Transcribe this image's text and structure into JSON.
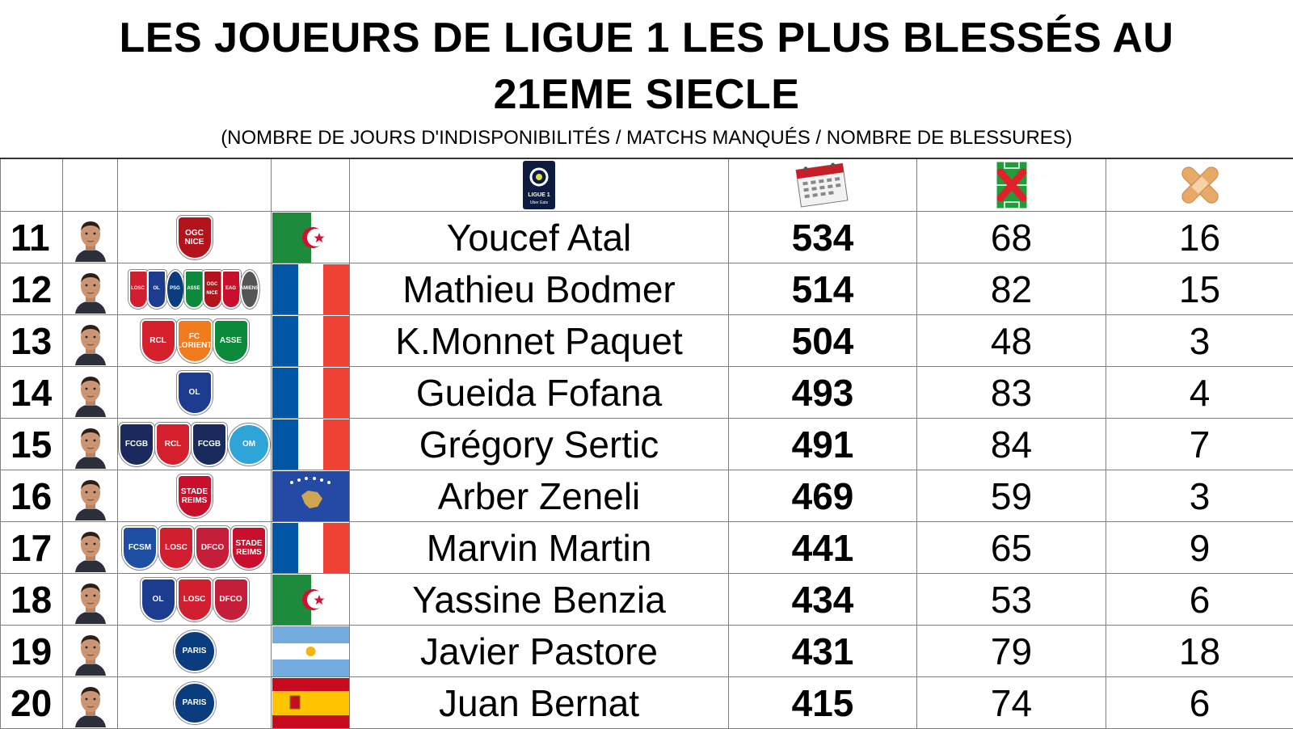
{
  "title": {
    "line1": "LES JOUEURS DE LIGUE 1 LES PLUS BLESSÉS AU",
    "line2": "21EME SIECLE"
  },
  "subtitle": "(NOMBRE DE JOURS D'INDISPONIBILITÉS / MATCHS MANQUÉS / NOMBRE DE BLESSURES)",
  "header_icons": {
    "league": "ligue1-logo-icon",
    "league_text": "LIGUE 1",
    "league_sub": "Uber Eats",
    "days": "calendar-icon",
    "matches": "pitch-cross-icon",
    "injuries": "bandage-icon"
  },
  "colors": {
    "pitch_green": "#1e9e3a",
    "cross_red": "#e0202a",
    "bandage": "#e8a868",
    "ligue1_navy": "#0d1b3e"
  },
  "rows": [
    {
      "rank": "11",
      "name": "Youcef Atal",
      "days": "534",
      "matches": "68",
      "injuries": "16",
      "flag": "algeria",
      "clubs": [
        {
          "label": "OGC NICE",
          "color": "#b3141b"
        }
      ]
    },
    {
      "rank": "12",
      "name": "Mathieu Bodmer",
      "days": "514",
      "matches": "82",
      "injuries": "15",
      "flag": "france",
      "clubs": [
        {
          "label": "LOSC",
          "color": "#d21f2f"
        },
        {
          "label": "OL",
          "color": "#1d3c8f"
        },
        {
          "label": "PSG",
          "color": "#0b3c7d"
        },
        {
          "label": "ASSE",
          "color": "#0a8a3a"
        },
        {
          "label": "OGC NICE",
          "color": "#b3141b"
        },
        {
          "label": "EAG",
          "color": "#c8102e"
        },
        {
          "label": "AMIENS",
          "color": "#555555"
        }
      ]
    },
    {
      "rank": "13",
      "name": "K.Monnet Paquet",
      "days": "504",
      "matches": "48",
      "injuries": "3",
      "flag": "france",
      "clubs": [
        {
          "label": "RCL",
          "color": "#d4202c"
        },
        {
          "label": "FC LORIENT",
          "color": "#f07c1e"
        },
        {
          "label": "ASSE",
          "color": "#0a8a3a"
        }
      ]
    },
    {
      "rank": "14",
      "name": "Gueida Fofana",
      "days": "493",
      "matches": "83",
      "injuries": "4",
      "flag": "france",
      "clubs": [
        {
          "label": "OL",
          "color": "#1d3c8f"
        }
      ]
    },
    {
      "rank": "15",
      "name": "Grégory Sertic",
      "days": "491",
      "matches": "84",
      "injuries": "7",
      "flag": "france",
      "clubs": [
        {
          "label": "FCGB",
          "color": "#1b2a5c"
        },
        {
          "label": "RCL",
          "color": "#d4202c"
        },
        {
          "label": "FCGB",
          "color": "#1b2a5c"
        },
        {
          "label": "OM",
          "color": "#2fa4d9"
        }
      ]
    },
    {
      "rank": "16",
      "name": "Arber Zeneli",
      "days": "469",
      "matches": "59",
      "injuries": "3",
      "flag": "kosovo",
      "clubs": [
        {
          "label": "STADE REIMS",
          "color": "#c8102e"
        }
      ]
    },
    {
      "rank": "17",
      "name": "Marvin Martin",
      "days": "441",
      "matches": "65",
      "injuries": "9",
      "flag": "france",
      "clubs": [
        {
          "label": "FCSM",
          "color": "#1f4fa3"
        },
        {
          "label": "LOSC",
          "color": "#d21f2f"
        },
        {
          "label": "DFCO",
          "color": "#c41e3a"
        },
        {
          "label": "STADE REIMS",
          "color": "#c8102e"
        }
      ]
    },
    {
      "rank": "18",
      "name": "Yassine Benzia",
      "days": "434",
      "matches": "53",
      "injuries": "6",
      "flag": "algeria",
      "clubs": [
        {
          "label": "OL",
          "color": "#1d3c8f"
        },
        {
          "label": "LOSC",
          "color": "#d21f2f"
        },
        {
          "label": "DFCO",
          "color": "#c41e3a"
        }
      ]
    },
    {
      "rank": "19",
      "name": "Javier Pastore",
      "days": "431",
      "matches": "79",
      "injuries": "18",
      "flag": "argentina",
      "clubs": [
        {
          "label": "PARIS",
          "color": "#0b3c7d"
        }
      ]
    },
    {
      "rank": "20",
      "name": "Juan Bernat",
      "days": "415",
      "matches": "74",
      "injuries": "6",
      "flag": "spain",
      "clubs": [
        {
          "label": "PARIS",
          "color": "#0b3c7d"
        }
      ]
    }
  ]
}
